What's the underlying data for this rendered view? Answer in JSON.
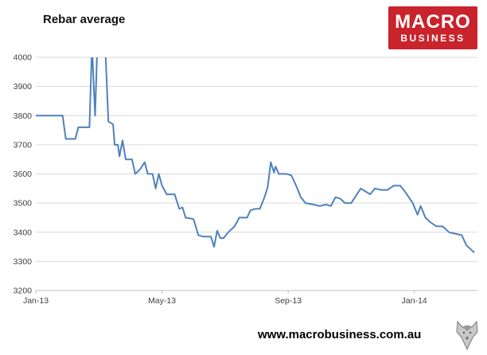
{
  "header": {
    "title": "Rebar average"
  },
  "logo": {
    "line1": "MACRO",
    "line2": "BUSINESS",
    "bg_color": "#C9232B",
    "text_color": "#FFFFFF"
  },
  "footer": {
    "website": "www.macrobusiness.com.au"
  },
  "chart_data": {
    "type": "line",
    "title": "Rebar average",
    "xlabel": "",
    "ylabel": "",
    "ylim": [
      3200,
      4000
    ],
    "xlim_months": [
      0,
      14
    ],
    "grid": true,
    "legend": false,
    "grid_color": "#D9D9D9",
    "axis_color": "#BFBFBF",
    "tick_label_color": "#404040",
    "y_ticks": [
      3200,
      3300,
      3400,
      3500,
      3600,
      3700,
      3800,
      3900,
      4000
    ],
    "x_ticks": [
      "Jan-13",
      "May-13",
      "Sep-13",
      "Jan-14"
    ],
    "x_tick_positions_months": [
      0,
      4,
      8,
      12
    ],
    "series": [
      {
        "name": "Rebar average",
        "color": "#4F81BD",
        "x": [
          0.0,
          0.4,
          0.85,
          0.95,
          1.25,
          1.35,
          1.7,
          1.78,
          1.88,
          1.95,
          2.2,
          2.3,
          2.45,
          2.5,
          2.6,
          2.65,
          2.75,
          2.85,
          3.05,
          3.15,
          3.3,
          3.45,
          3.55,
          3.7,
          3.8,
          3.9,
          4.0,
          4.15,
          4.4,
          4.55,
          4.65,
          4.75,
          5.0,
          5.15,
          5.3,
          5.55,
          5.65,
          5.75,
          5.85,
          5.95,
          6.1,
          6.3,
          6.45,
          6.7,
          6.8,
          6.95,
          7.1,
          7.25,
          7.35,
          7.45,
          7.55,
          7.6,
          7.7,
          7.95,
          8.1,
          8.25,
          8.4,
          8.55,
          8.8,
          9.0,
          9.2,
          9.35,
          9.5,
          9.65,
          9.8,
          10.0,
          10.3,
          10.45,
          10.6,
          10.75,
          10.95,
          11.15,
          11.35,
          11.55,
          11.7,
          11.95,
          12.1,
          12.2,
          12.35,
          12.5,
          12.7,
          12.9,
          13.1,
          13.3,
          13.5,
          13.65,
          13.8,
          13.9
        ],
        "values": [
          3800,
          3800,
          3800,
          3720,
          3720,
          3760,
          3760,
          4040,
          3800,
          4040,
          4040,
          3780,
          3770,
          3700,
          3700,
          3660,
          3715,
          3650,
          3650,
          3600,
          3615,
          3640,
          3600,
          3600,
          3550,
          3600,
          3560,
          3530,
          3530,
          3480,
          3485,
          3450,
          3445,
          3390,
          3385,
          3385,
          3350,
          3405,
          3380,
          3380,
          3400,
          3420,
          3450,
          3450,
          3475,
          3480,
          3480,
          3520,
          3555,
          3640,
          3605,
          3625,
          3600,
          3600,
          3595,
          3560,
          3520,
          3500,
          3495,
          3490,
          3495,
          3490,
          3520,
          3515,
          3500,
          3500,
          3550,
          3540,
          3530,
          3550,
          3545,
          3545,
          3560,
          3560,
          3540,
          3500,
          3460,
          3490,
          3450,
          3435,
          3420,
          3420,
          3400,
          3395,
          3390,
          3355,
          3340,
          3330
        ]
      }
    ]
  }
}
